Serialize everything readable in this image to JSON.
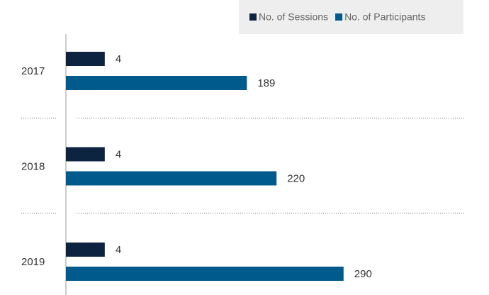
{
  "chart_data": {
    "type": "hbar",
    "categories": [
      "2017",
      "2018",
      "2019"
    ],
    "series": [
      {
        "name": "No. of Sessions",
        "color": "#0d2440",
        "axis": "x2",
        "values": [
          4,
          4,
          4
        ]
      },
      {
        "name": "No. of Participants",
        "color": "#005a8c",
        "values": [
          189,
          220,
          290
        ]
      }
    ],
    "xlim": [
      0,
      416
    ],
    "x2lim": [
      0,
      41
    ],
    "legend": "top-right"
  }
}
